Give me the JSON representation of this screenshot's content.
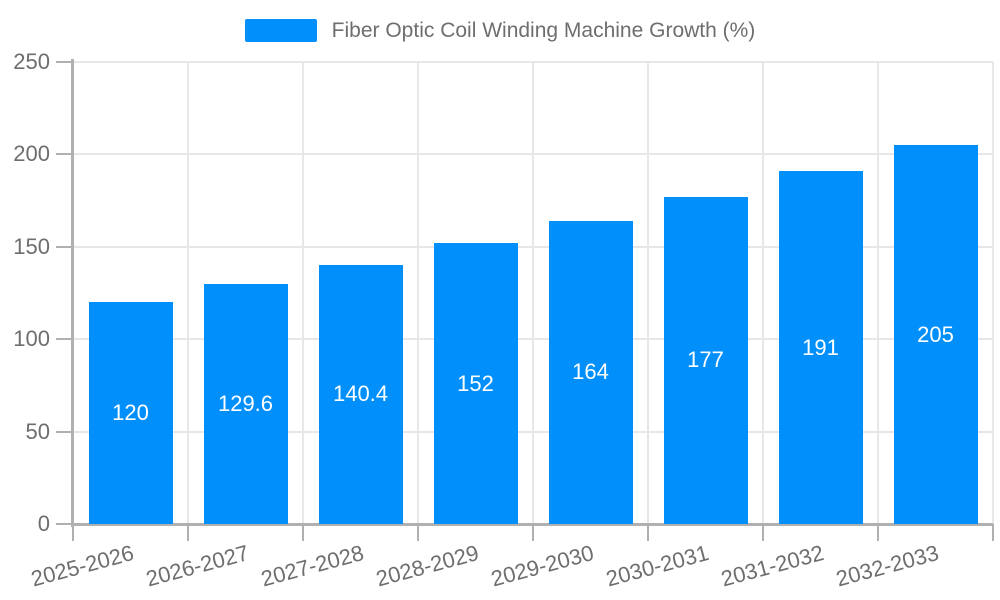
{
  "chart_data": {
    "type": "bar",
    "title": "Fiber Optic Coil Winding Machine Growth (%)",
    "legend": {
      "position": "top",
      "entries": [
        "Fiber Optic Coil Winding Machine Growth (%)"
      ]
    },
    "categories": [
      "2025-2026",
      "2026-2027",
      "2027-2028",
      "2028-2029",
      "2029-2030",
      "2030-2031",
      "2031-2032",
      "2032-2033"
    ],
    "series": [
      {
        "name": "Fiber Optic Coil Winding Machine Growth (%)",
        "values": [
          120,
          129.6,
          140.4,
          152,
          164,
          177,
          191,
          205
        ]
      }
    ],
    "data_labels": [
      "120",
      "129.6",
      "140.4",
      "152",
      "164",
      "177",
      "191",
      "205"
    ],
    "xlabel": "",
    "ylabel": "",
    "ylim": [
      0,
      250
    ],
    "yticks": [
      0,
      50,
      100,
      150,
      200,
      250
    ],
    "grid": true,
    "colors": {
      "bar": "#008FFB",
      "data_label": "#ffffff",
      "grid_line": "#e7e7e7",
      "axis_line": "#b0b0b0",
      "tick_line": "#b0b0b0",
      "axis_text": "#6e6e6e",
      "legend_text": "#6e6e6e",
      "background": "#ffffff"
    }
  }
}
